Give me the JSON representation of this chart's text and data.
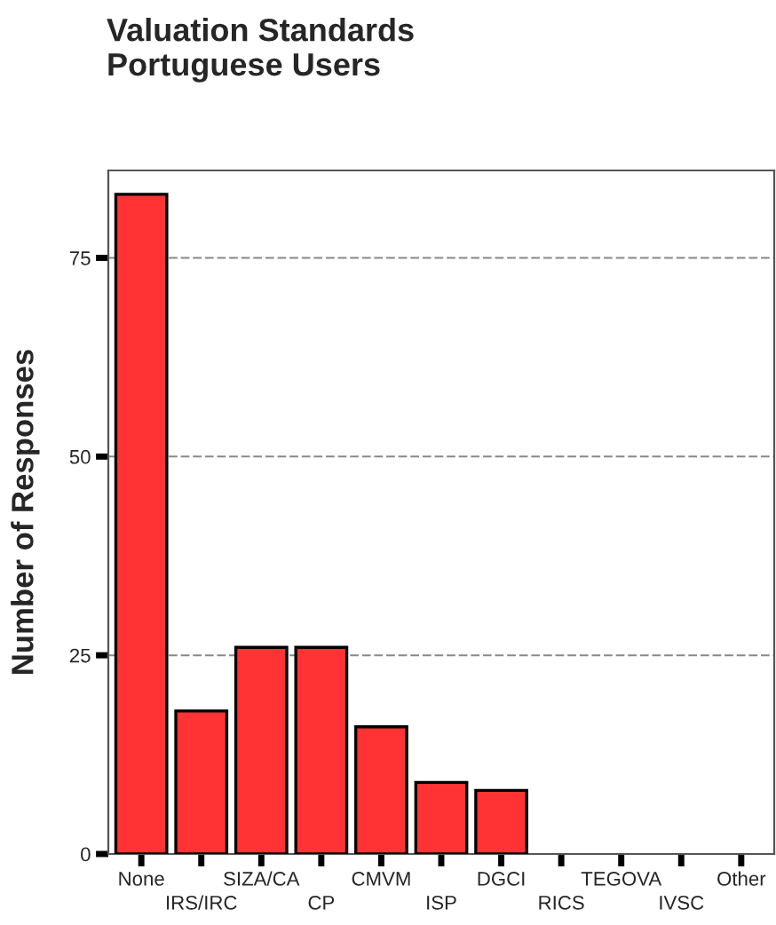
{
  "chart_data": {
    "type": "bar",
    "title": "Valuation Standards\nPortuguese Users",
    "ylabel": "Number of Responses",
    "categories": [
      "None",
      "IRS/IRC",
      "SIZA/CA",
      "CP",
      "CMVM",
      "ISP",
      "DGCI",
      "RICS",
      "TEGOVA",
      "IVSC",
      "Other"
    ],
    "values": [
      83,
      18,
      26,
      26,
      16,
      9,
      8,
      0,
      0,
      0,
      0
    ],
    "color": "#ff3333",
    "ylim": [
      0,
      86
    ],
    "yticks": [
      0,
      25,
      50,
      75
    ],
    "grid": "y"
  }
}
